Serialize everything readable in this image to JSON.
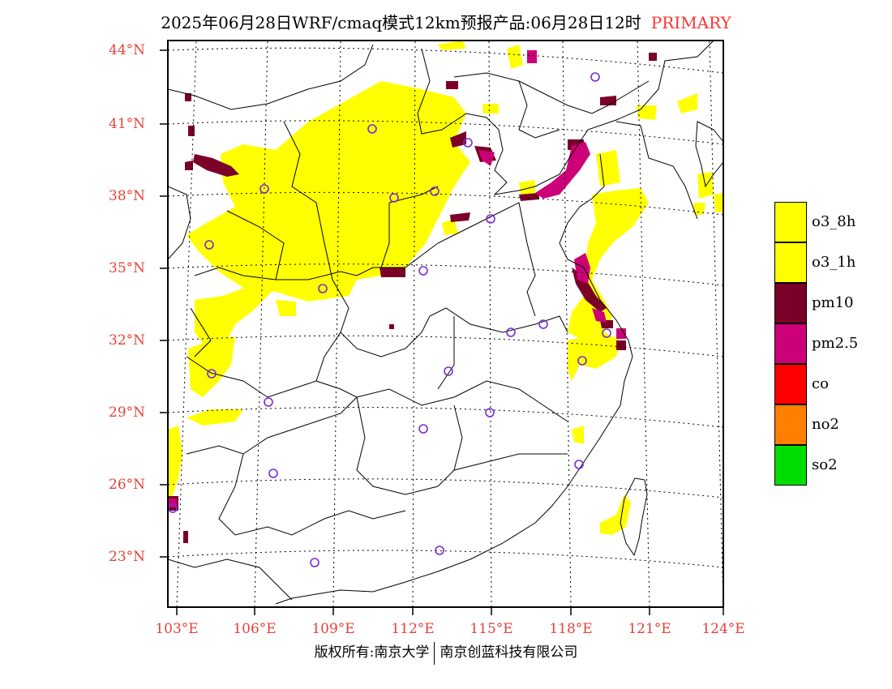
{
  "header": {
    "title": "2025年06月28日WRF/cmaq模式12km预报产品:06月28日12时",
    "tag": "PRIMARY"
  },
  "colors": {
    "tag": "#ff3333",
    "axis_label": "#e8413a",
    "o3_8h": "#ffff00",
    "o3_1h": "#ffff00",
    "pm10": "#7a0028",
    "pm2_5": "#cc0077",
    "co": "#ff0000",
    "no2": "#ff8000",
    "so2": "#00dd00",
    "station": "#7a2ad6"
  },
  "map": {
    "lat_labels": [
      "44°N",
      "41°N",
      "38°N",
      "35°N",
      "32°N",
      "29°N",
      "26°N",
      "23°N"
    ],
    "lon_labels": [
      "103°E",
      "106°E",
      "109°E",
      "112°E",
      "115°E",
      "118°E",
      "121°E",
      "124°E"
    ]
  },
  "legend": {
    "items": [
      {
        "label": "o3_8h",
        "color": "#ffff00"
      },
      {
        "label": "o3_1h",
        "color": "#ffff00"
      },
      {
        "label": "pm10",
        "color": "#7a0028"
      },
      {
        "label": "pm2.5",
        "color": "#cc0077"
      },
      {
        "label": "co",
        "color": "#ff0000"
      },
      {
        "label": "no2",
        "color": "#ff8000"
      },
      {
        "label": "so2",
        "color": "#00dd00"
      }
    ]
  },
  "footer": {
    "left": "版权所有:南京大学",
    "right": "南京创蓝科技有限公司"
  }
}
